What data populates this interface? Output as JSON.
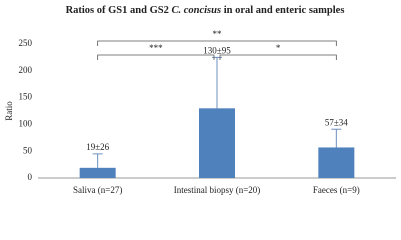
{
  "chart_data": {
    "type": "bar",
    "title": [
      "Ratios of GS1 and GS2 ",
      "C. concisus",
      " in oral and enteric samples"
    ],
    "y_label": "Ratio",
    "categories": [
      "Saliva (n=27)",
      "Intestinal biopsy (n=20)",
      "Faeces (n=9)"
    ],
    "values": [
      19,
      130,
      57
    ],
    "errors": [
      26,
      95,
      34
    ],
    "value_labels": [
      "19±26",
      "130±95",
      "57±34"
    ],
    "color": "#4f81bd",
    "ylim": [
      0,
      250
    ],
    "yticks": [
      0,
      50,
      100,
      150,
      200,
      250
    ],
    "grid": false,
    "significance": [
      {
        "pair": [
          0,
          2
        ],
        "label": "**"
      },
      {
        "pair": [
          0,
          1
        ],
        "label": "***"
      },
      {
        "pair": [
          1,
          2
        ],
        "label": "*"
      }
    ]
  }
}
